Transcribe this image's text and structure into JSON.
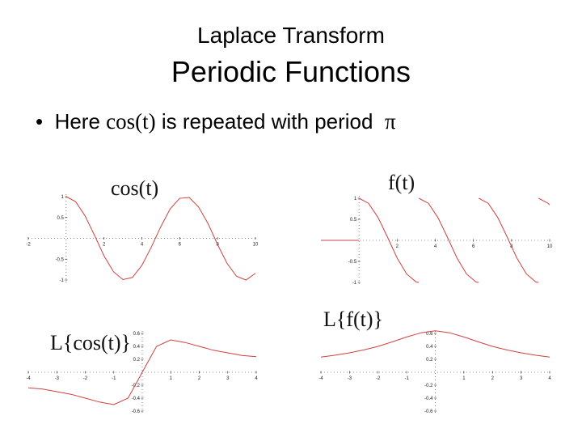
{
  "slide": {
    "supertitle": "Laplace Transform",
    "title": "Periodic Functions",
    "bullet": {
      "mark": "•",
      "parts": [
        "Here",
        "cos(t)",
        "is repeated with period",
        "π"
      ]
    }
  },
  "chart_data": [
    {
      "type": "line",
      "title": "cos(t)",
      "xlim": [
        -2,
        10
      ],
      "ylim": [
        -1,
        1
      ],
      "xticks": [
        -2,
        2,
        4,
        6,
        8,
        10
      ],
      "yticks": [
        1,
        0.5,
        -0.5,
        -1
      ],
      "series": [
        {
          "color": "#d04040",
          "x": [
            0,
            0.5,
            1,
            1.5,
            2,
            2.5,
            3,
            3.5,
            4,
            4.5,
            5,
            5.5,
            6,
            6.5,
            7,
            7.5,
            8,
            8.5,
            9,
            9.5,
            10
          ],
          "values": [
            1,
            0.88,
            0.54,
            0.07,
            -0.42,
            -0.8,
            -0.99,
            -0.94,
            -0.65,
            -0.21,
            0.28,
            0.71,
            0.96,
            0.98,
            0.75,
            0.35,
            -0.15,
            -0.6,
            -0.91,
            -1,
            -0.84
          ]
        }
      ]
    },
    {
      "type": "line",
      "title": "f(t)",
      "xlim": [
        -2,
        10
      ],
      "ylim": [
        -1,
        1
      ],
      "xticks": [
        2,
        4,
        6,
        8,
        10
      ],
      "yticks": [
        1,
        0.5,
        -0.5,
        -1
      ],
      "series": [
        {
          "color": "#d04040",
          "x": [
            -2,
            0,
            0,
            0,
            0.5,
            1,
            1.5,
            2,
            2.5,
            3,
            3.14,
            3.14,
            3.14,
            3.64,
            4.14,
            4.64,
            5.14,
            5.64,
            6.14,
            6.28,
            6.28,
            6.28,
            6.78,
            7.28,
            7.78,
            8.28,
            8.78,
            9.28,
            9.42,
            9.42,
            9.42,
            9.92,
            10
          ],
          "values": [
            0,
            0,
            null,
            1,
            0.88,
            0.54,
            0.07,
            -0.42,
            -0.8,
            -0.99,
            -1,
            null,
            1,
            0.88,
            0.54,
            0.07,
            -0.42,
            -0.8,
            -0.99,
            -1,
            null,
            1,
            0.88,
            0.54,
            0.07,
            -0.42,
            -0.8,
            -0.99,
            -1,
            null,
            1,
            0.88,
            0.84
          ]
        }
      ]
    },
    {
      "type": "line",
      "title": "L{cos(t)}",
      "xlim": [
        -4,
        4
      ],
      "ylim": [
        -0.6,
        0.6
      ],
      "xticks": [
        -4,
        -3,
        -2,
        -1,
        1,
        2,
        3,
        4
      ],
      "yticks": [
        0.6,
        0.4,
        0.2,
        -0.2,
        -0.4,
        -0.6
      ],
      "series": [
        {
          "color": "#d04040",
          "x": [
            -4,
            -3.5,
            -3,
            -2.5,
            -2,
            -1.5,
            -1,
            -0.5,
            0,
            0.5,
            1,
            1.5,
            2,
            2.5,
            3,
            3.5,
            4
          ],
          "values": [
            -0.24,
            -0.26,
            -0.3,
            -0.34,
            -0.4,
            -0.46,
            -0.5,
            -0.4,
            0,
            0.4,
            0.5,
            0.46,
            0.4,
            0.34,
            0.3,
            0.26,
            0.24
          ]
        }
      ]
    },
    {
      "type": "line",
      "title": "L{f(t)}",
      "xlim": [
        -4,
        4
      ],
      "ylim": [
        -0.6,
        0.6
      ],
      "xticks": [
        -4,
        -3,
        -2,
        -1,
        1,
        2,
        3,
        4
      ],
      "yticks": [
        0.6,
        0.4,
        0.2,
        -0.2,
        -0.4,
        -0.6
      ],
      "series": [
        {
          "color": "#d04040",
          "x": [
            -4,
            -3.5,
            -3,
            -2.5,
            -2,
            -1.5,
            -1,
            -0.5,
            0,
            0.5,
            1,
            1.5,
            2,
            2.5,
            3,
            3.5,
            4
          ],
          "values": [
            0.235,
            0.264,
            0.3,
            0.345,
            0.4,
            0.47,
            0.545,
            0.61,
            0.64,
            0.61,
            0.545,
            0.47,
            0.4,
            0.345,
            0.3,
            0.264,
            0.235
          ]
        }
      ]
    }
  ]
}
